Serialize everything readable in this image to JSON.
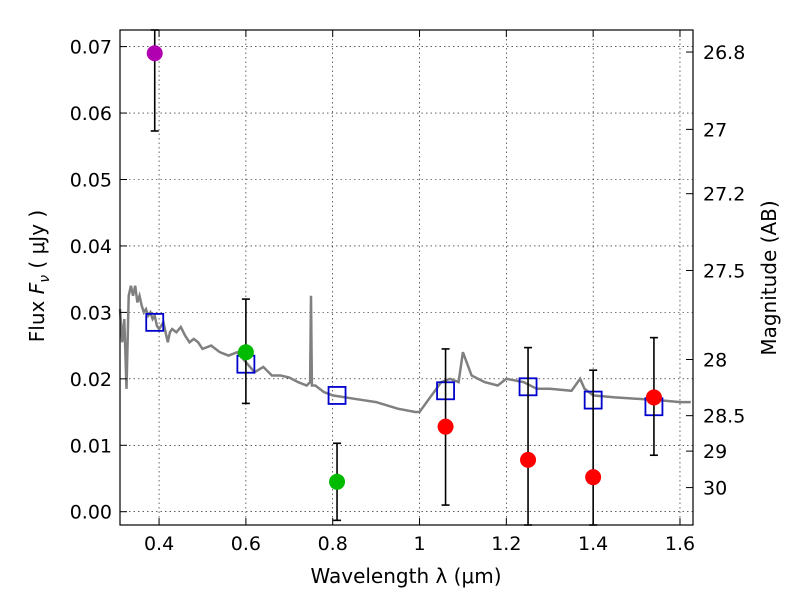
{
  "chart_data": {
    "type": "scatter",
    "xlabel": "Wavelength  λ (μm)",
    "ylabel_prefix": "Flux  ",
    "ylabel_symbol": "F",
    "ylabel_subscript": "ν",
    "ylabel_units": "  ( μJy )",
    "y2label": "Magnitude (AB)",
    "xlim": [
      0.31,
      1.63
    ],
    "ylim": [
      -0.002,
      0.0725
    ],
    "grid": true,
    "x_ticks": [
      0.4,
      0.6,
      0.8,
      1.0,
      1.2,
      1.4,
      1.6
    ],
    "x_tick_labels": [
      "0.4",
      "0.6",
      "0.8",
      "1",
      "1.2",
      "1.4",
      "1.6"
    ],
    "y_ticks": [
      0.0,
      0.01,
      0.02,
      0.03,
      0.04,
      0.05,
      0.06,
      0.07
    ],
    "y_tick_labels": [
      "0.00",
      "0.01",
      "0.02",
      "0.03",
      "0.04",
      "0.05",
      "0.06",
      "0.07"
    ],
    "y2_ticks": [
      26.8,
      27,
      27.2,
      27.5,
      28,
      28.5,
      29,
      30
    ],
    "y2_tick_labels": [
      "26.8",
      "27",
      "27.2",
      "27.5",
      "28",
      "28.5",
      "29",
      "30"
    ],
    "colors": {
      "model": "#808080",
      "model_squares": "#0000cc",
      "errorbar": "#000000",
      "violet": "#b000b0",
      "green": "#00bb00",
      "red": "#ff0000"
    },
    "model_spectrum": {
      "x": [
        0.31,
        0.315,
        0.32,
        0.325,
        0.33,
        0.335,
        0.34,
        0.345,
        0.35,
        0.355,
        0.36,
        0.365,
        0.37,
        0.375,
        0.38,
        0.385,
        0.39,
        0.395,
        0.4,
        0.41,
        0.42,
        0.425,
        0.43,
        0.44,
        0.45,
        0.46,
        0.47,
        0.48,
        0.49,
        0.5,
        0.52,
        0.54,
        0.56,
        0.58,
        0.6,
        0.62,
        0.64,
        0.66,
        0.68,
        0.7,
        0.72,
        0.74,
        0.748,
        0.75,
        0.752,
        0.76,
        0.78,
        0.8,
        0.85,
        0.9,
        0.95,
        0.99,
        1.0,
        1.05,
        1.07,
        1.09,
        1.1,
        1.12,
        1.15,
        1.18,
        1.2,
        1.24,
        1.27,
        1.3,
        1.35,
        1.37,
        1.38,
        1.4,
        1.45,
        1.5,
        1.55,
        1.6,
        1.625
      ],
      "y": [
        0.0305,
        0.0255,
        0.029,
        0.0185,
        0.0325,
        0.034,
        0.0325,
        0.034,
        0.0315,
        0.0325,
        0.031,
        0.03,
        0.0305,
        0.0295,
        0.03,
        0.029,
        0.0295,
        0.028,
        0.0275,
        0.0285,
        0.0255,
        0.027,
        0.0275,
        0.027,
        0.0278,
        0.0265,
        0.0255,
        0.026,
        0.0255,
        0.0245,
        0.025,
        0.024,
        0.0235,
        0.024,
        0.0225,
        0.021,
        0.0218,
        0.0205,
        0.0205,
        0.0202,
        0.0195,
        0.019,
        0.0195,
        0.0325,
        0.019,
        0.019,
        0.018,
        0.0175,
        0.017,
        0.0165,
        0.0155,
        0.015,
        0.015,
        0.0195,
        0.02,
        0.0195,
        0.024,
        0.0205,
        0.0195,
        0.019,
        0.02,
        0.0195,
        0.0185,
        0.0185,
        0.0182,
        0.02,
        0.0185,
        0.0175,
        0.0172,
        0.017,
        0.0168,
        0.0165,
        0.0165
      ]
    },
    "model_band_fluxes": {
      "x": [
        0.39,
        0.6,
        0.81,
        1.06,
        1.25,
        1.4,
        1.54
      ],
      "y": [
        0.0285,
        0.0222,
        0.0175,
        0.0182,
        0.0188,
        0.0168,
        0.0158
      ]
    },
    "observed": [
      {
        "x": 0.39,
        "y": 0.069,
        "yerr_low": 0.0573,
        "yerr_high": 0.0725,
        "color": "violet"
      },
      {
        "x": 0.6,
        "y": 0.024,
        "yerr_low": 0.0163,
        "yerr_high": 0.032,
        "color": "green"
      },
      {
        "x": 0.81,
        "y": 0.0045,
        "yerr_low": -0.0013,
        "yerr_high": 0.0103,
        "color": "green"
      },
      {
        "x": 1.06,
        "y": 0.0128,
        "yerr_low": 0.001,
        "yerr_high": 0.0245,
        "color": "red"
      },
      {
        "x": 1.25,
        "y": 0.0078,
        "yerr_low": -0.002,
        "yerr_high": 0.0247,
        "color": "red"
      },
      {
        "x": 1.4,
        "y": 0.0052,
        "yerr_low": -0.002,
        "yerr_high": 0.0213,
        "color": "red"
      },
      {
        "x": 1.54,
        "y": 0.0172,
        "yerr_low": 0.0085,
        "yerr_high": 0.0262,
        "color": "red"
      }
    ]
  }
}
